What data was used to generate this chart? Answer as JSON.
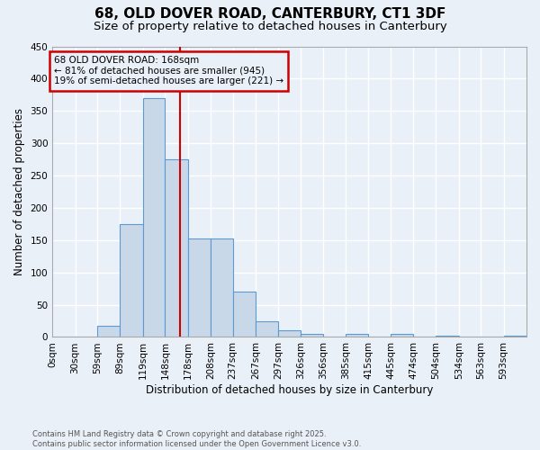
{
  "title1": "68, OLD DOVER ROAD, CANTERBURY, CT1 3DF",
  "title2": "Size of property relative to detached houses in Canterbury",
  "xlabel": "Distribution of detached houses by size in Canterbury",
  "ylabel": "Number of detached properties",
  "footnote1": "Contains HM Land Registry data © Crown copyright and database right 2025.",
  "footnote2": "Contains public sector information licensed under the Open Government Licence v3.0.",
  "bar_values": [
    0,
    0,
    17,
    175,
    370,
    275,
    152,
    152,
    70,
    25,
    10,
    5,
    0,
    5,
    0,
    5,
    0,
    2,
    0,
    0,
    2
  ],
  "bin_edges": [
    0,
    30,
    59,
    89,
    119,
    148,
    178,
    208,
    237,
    267,
    297,
    326,
    356,
    385,
    415,
    445,
    474,
    504,
    534,
    563,
    593
  ],
  "x_labels": [
    "0sqm",
    "30sqm",
    "59sqm",
    "89sqm",
    "119sqm",
    "148sqm",
    "178sqm",
    "208sqm",
    "237sqm",
    "267sqm",
    "297sqm",
    "326sqm",
    "356sqm",
    "385sqm",
    "415sqm",
    "445sqm",
    "474sqm",
    "504sqm",
    "534sqm",
    "563sqm",
    "593sqm"
  ],
  "bar_color": "#c8d8e8",
  "bar_edge_color": "#5b9bd5",
  "vline_x": 168,
  "vline_color": "#cc0000",
  "ylim": [
    0,
    450
  ],
  "yticks": [
    0,
    50,
    100,
    150,
    200,
    250,
    300,
    350,
    400,
    450
  ],
  "annotation_text": "68 OLD DOVER ROAD: 168sqm\n← 81% of detached houses are smaller (945)\n19% of semi-detached houses are larger (221) →",
  "annotation_box_color": "#cc0000",
  "bg_color": "#eaf0f8",
  "grid_color": "#ffffff",
  "title1_fontsize": 11,
  "title2_fontsize": 9.5
}
